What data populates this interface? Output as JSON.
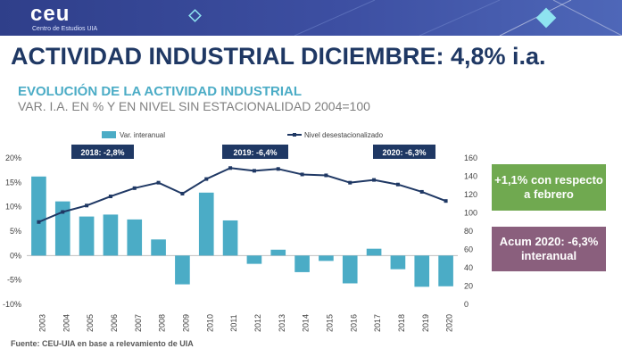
{
  "header": {
    "logo_text": "ceu",
    "logo_subtitle": "Centro de Estudios UIA"
  },
  "title": "ACTIVIDAD INDUSTRIAL DICIEMBRE: 4,8% i.a.",
  "subtitle_1": "EVOLUCIÓN DE LA ACTIVIDAD INDUSTRIAL",
  "subtitle_2": "VAR. I.A. EN % Y EN NIVEL SIN ESTACIONALIDAD 2004=100",
  "callouts": {
    "green": "+1,1% con respecto a febrero",
    "purple": "Acum 2020: -6,3% interanual"
  },
  "source": "Fuente: CEU-UIA en base a relevamiento de UIA",
  "colors": {
    "bars": "#4bacc6",
    "line": "#1f3864",
    "title": "#1f3864",
    "subtitle": "#4bacc6",
    "green_box": "#70a950",
    "purple_box": "#8a5f7d",
    "year_tag": "#1f3864"
  },
  "chart_data": {
    "type": "bar+line",
    "categories": [
      "2003",
      "2004",
      "2005",
      "2006",
      "2007",
      "2008",
      "2009",
      "2010",
      "2011",
      "2012",
      "2013",
      "2014",
      "2015",
      "2016",
      "2017",
      "2018",
      "2019",
      "2020"
    ],
    "series": [
      {
        "name": "Var. interanual",
        "type": "bar",
        "axis": "left",
        "values": [
          16.2,
          11.1,
          8.0,
          8.4,
          7.4,
          3.3,
          -5.9,
          12.9,
          7.2,
          -1.7,
          1.2,
          -3.4,
          -1.1,
          -5.7,
          1.4,
          -2.8,
          -6.4,
          -6.3
        ]
      },
      {
        "name": "Nivel desestacionalizado",
        "type": "line",
        "axis": "right",
        "values": [
          90,
          101,
          108,
          118,
          127,
          133,
          121,
          137,
          149,
          146,
          148,
          142,
          141,
          133,
          136,
          131,
          123,
          113
        ]
      }
    ],
    "y_left": {
      "min": -10,
      "max": 20,
      "ticks": [
        "-10%",
        "-5%",
        "0%",
        "5%",
        "10%",
        "15%",
        "20%"
      ]
    },
    "y_right": {
      "min": 0,
      "max": 160,
      "ticks": [
        "0",
        "20",
        "40",
        "60",
        "80",
        "100",
        "120",
        "140",
        "160"
      ]
    },
    "legend_position": "top",
    "annotations": [
      {
        "label": "2018:  -2,8%",
        "year": "2008"
      },
      {
        "label": "2019: -6,4%",
        "year": "2012"
      },
      {
        "label": "2020: -6,3%",
        "year": "2017"
      }
    ]
  }
}
